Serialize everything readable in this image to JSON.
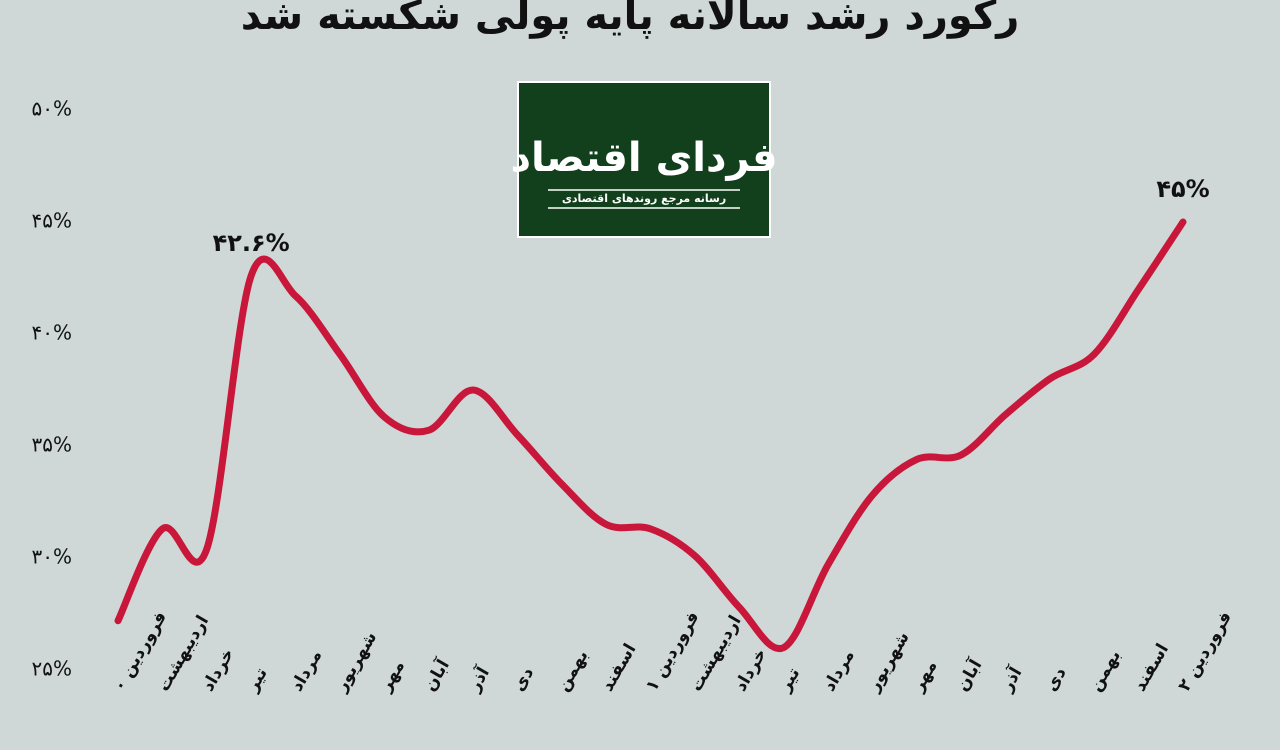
{
  "chart_data": {
    "type": "line",
    "title": "رکورد رشد سالانه پایه پولی شکسته شد",
    "categories": [
      "فروردین ۰",
      "اردیبهشت",
      "خرداد",
      "تیر",
      "مرداد",
      "شهریور",
      "مهر",
      "آبان",
      "آذر",
      "دی",
      "بهمن",
      "اسفند",
      "فروردین ۱",
      "اردیبهشت",
      "خرداد",
      "تیر",
      "مرداد",
      "شهریور",
      "مهر",
      "آبان",
      "آذر",
      "دی",
      "بهمن",
      "اسفند",
      "فروردین ۲"
    ],
    "series": [
      {
        "color": "#c8173a",
        "values": [
          27.2,
          31.3,
          30.4,
          42.6,
          41.7,
          39.1,
          36.3,
          35.7,
          37.5,
          35.5,
          33.3,
          31.5,
          31.3,
          30.1,
          27.8,
          26.0,
          29.7,
          32.8,
          34.4,
          34.6,
          36.4,
          38.0,
          39.1,
          42.0,
          45
        ],
        "value_labels": [
          null,
          null,
          null,
          "۴۲.۶%",
          null,
          null,
          null,
          null,
          null,
          null,
          null,
          null,
          null,
          null,
          null,
          null,
          null,
          null,
          null,
          null,
          null,
          null,
          null,
          null,
          "۴۵%"
        ]
      }
    ],
    "ylim": [
      25,
      50
    ],
    "yticks": [
      {
        "value": 25,
        "label": "۲۵%"
      },
      {
        "value": 30,
        "label": "۳۰%"
      },
      {
        "value": 35,
        "label": "۳۵%"
      },
      {
        "value": 40,
        "label": "۴۰%"
      },
      {
        "value": 45,
        "label": "۴۵%"
      },
      {
        "value": 50,
        "label": "۵۰%"
      }
    ],
    "grid": false
  },
  "logo": {
    "title": "فردای اقتصاد",
    "subtitle": "رسانه مرجع روندهای اقتصادی"
  }
}
